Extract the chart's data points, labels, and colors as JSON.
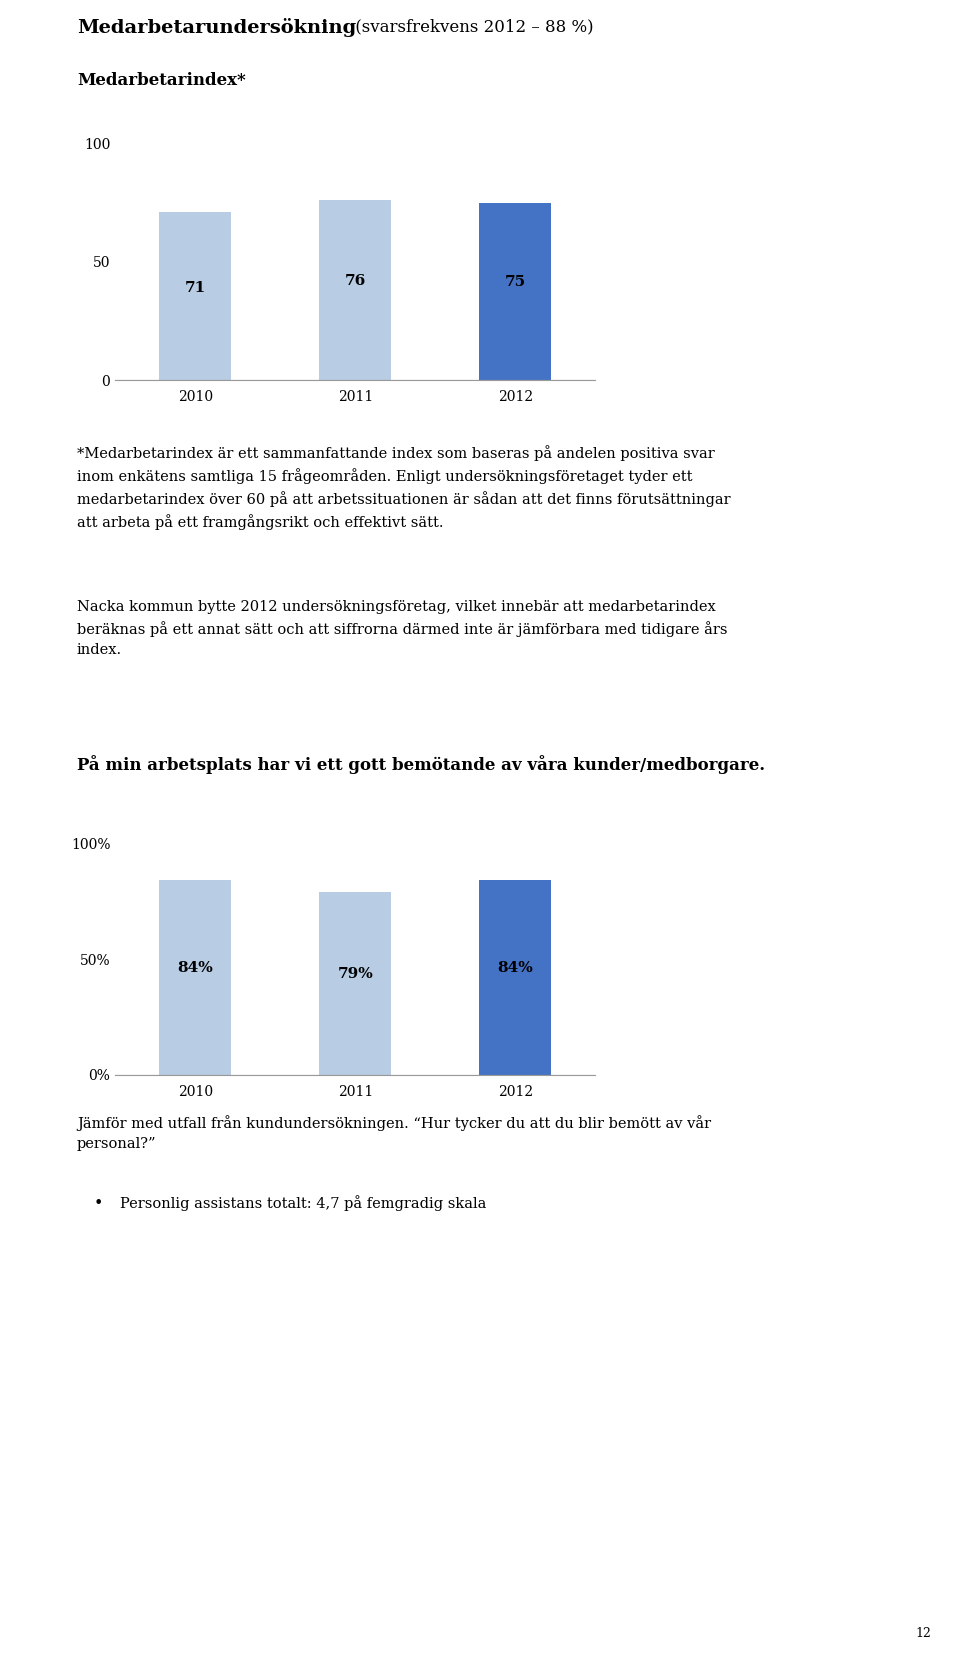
{
  "page_title_bold": "Medarbetarundersökning",
  "page_title_normal": " (svarsfrekvens 2012 – 88 %)",
  "chart1_title": "Medarbetarindex*",
  "chart1_categories": [
    "2010",
    "2011",
    "2012"
  ],
  "chart1_values": [
    71,
    76,
    75
  ],
  "chart1_colors": [
    "#b8cce4",
    "#b8cce4",
    "#4472c4"
  ],
  "chart1_yticks": [
    0,
    50,
    100
  ],
  "chart1_ylim": [
    0,
    110
  ],
  "combined_text": "*Medarbetarindex är ett sammanfattande index som baseras på andelen positiva svar\ninom enkätens samtliga 15 frågeområden. Enligt undersökningsföretaget tyder ett\nmedarbetarindex över 60 på att arbetssituationen är sådan att det finns förutsättningar\natt arbeta på ett framgångsrikt och effektivt sätt.",
  "body_text2": "Nacka kommun bytte 2012 undersökningsföretag, vilket innebär att medarbetarindex\nberäknas på ett annat sätt och att siffrorna därmed inte är jämförbara med tidigare års\nindex.",
  "chart2_title": "På min arbetsplats har vi ett gott bemötande av våra kunder/medborgare.",
  "chart2_categories": [
    "2010",
    "2011",
    "2012"
  ],
  "chart2_values": [
    84,
    79,
    84
  ],
  "chart2_colors": [
    "#b8cce4",
    "#b8cce4",
    "#4472c4"
  ],
  "chart2_yticks": [
    0,
    50,
    100
  ],
  "chart2_ylim": [
    0,
    110
  ],
  "chart2_yticklabels": [
    "0%",
    "50%",
    "100%"
  ],
  "footnote2": "Jämför med utfall från kundundersökningen. “Hur tycker du att du blir bemött av vår\npersonal?”",
  "bullet_text": "Personlig assistans totalt: 4,7 på femgradig skala",
  "page_number": "12",
  "bg_color": "#ffffff",
  "text_color": "#000000",
  "bar_label_fontsize": 11,
  "axis_fontsize": 10,
  "body_fontsize": 10.5
}
